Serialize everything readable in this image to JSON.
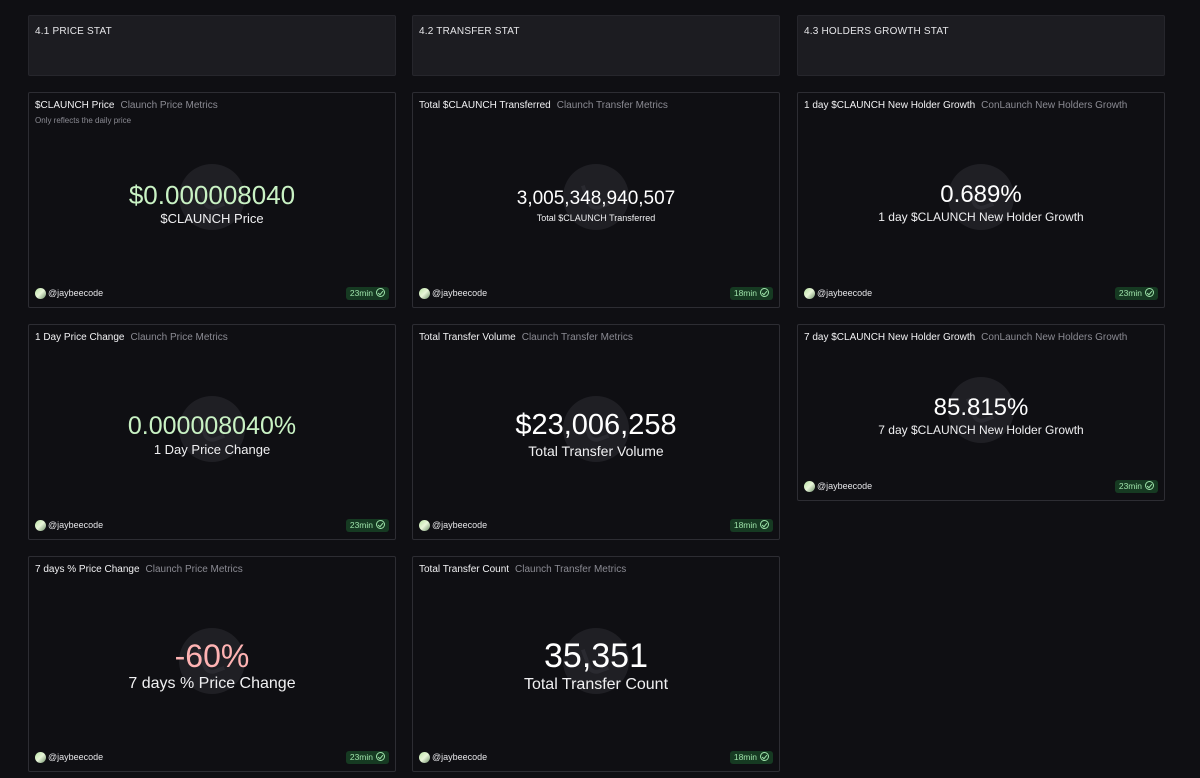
{
  "sections": [
    {
      "title": "4.1 PRICE STAT"
    },
    {
      "title": "4.2 TRANSFER STAT"
    },
    {
      "title": "4.3 HOLDERS GROWTH STAT"
    }
  ],
  "cards": {
    "price": {
      "title": "$CLAUNCH Price",
      "subtitle": "Claunch Price Metrics",
      "note": "Only reflects the daily price",
      "value": "$0.000008040",
      "label": "$CLAUNCH Price",
      "author": "@jaybeecode",
      "age": "23min"
    },
    "day_change": {
      "title": "1 Day Price Change",
      "subtitle": "Claunch Price Metrics",
      "value": "0.000008040%",
      "label": "1 Day Price Change",
      "author": "@jaybeecode",
      "age": "23min"
    },
    "week_change": {
      "title": "7 days % Price Change",
      "subtitle": "Claunch Price Metrics",
      "value": "-60%",
      "label": "7 days % Price Change",
      "author": "@jaybeecode",
      "age": "23min"
    },
    "transferred": {
      "title": "Total $CLAUNCH Transferred",
      "subtitle": "Claunch Transfer Metrics",
      "value": "3,005,348,940,507",
      "label": "Total $CLAUNCH Transferred",
      "author": "@jaybeecode",
      "age": "18min"
    },
    "volume": {
      "title": "Total Transfer Volume",
      "subtitle": "Claunch Transfer Metrics",
      "value": "$23,006,258",
      "label": "Total Transfer Volume",
      "author": "@jaybeecode",
      "age": "18min"
    },
    "count": {
      "title": "Total Transfer Count",
      "subtitle": "Claunch Transfer Metrics",
      "value": "35,351",
      "label": "Total Transfer Count",
      "author": "@jaybeecode",
      "age": "18min"
    },
    "holders_1d": {
      "title": "1 day $CLAUNCH New Holder Growth",
      "subtitle": "ConLaunch New Holders Growth",
      "value": "0.689%",
      "label": "1 day $CLAUNCH New Holder Growth",
      "author": "@jaybeecode",
      "age": "23min"
    },
    "holders_7d": {
      "title": "7 day $CLAUNCH New Holder Growth",
      "subtitle": "ConLaunch New Holders Growth",
      "value": "85.815%",
      "label": "7 day $CLAUNCH New Holder Growth",
      "author": "@jaybeecode",
      "age": "23min"
    }
  },
  "colors": {
    "background": "#0f0f13",
    "positive_value": "#c9f2c4",
    "negative_value": "#ffb3b3",
    "badge_bg": "#163a22",
    "badge_text": "#9de2a9"
  }
}
